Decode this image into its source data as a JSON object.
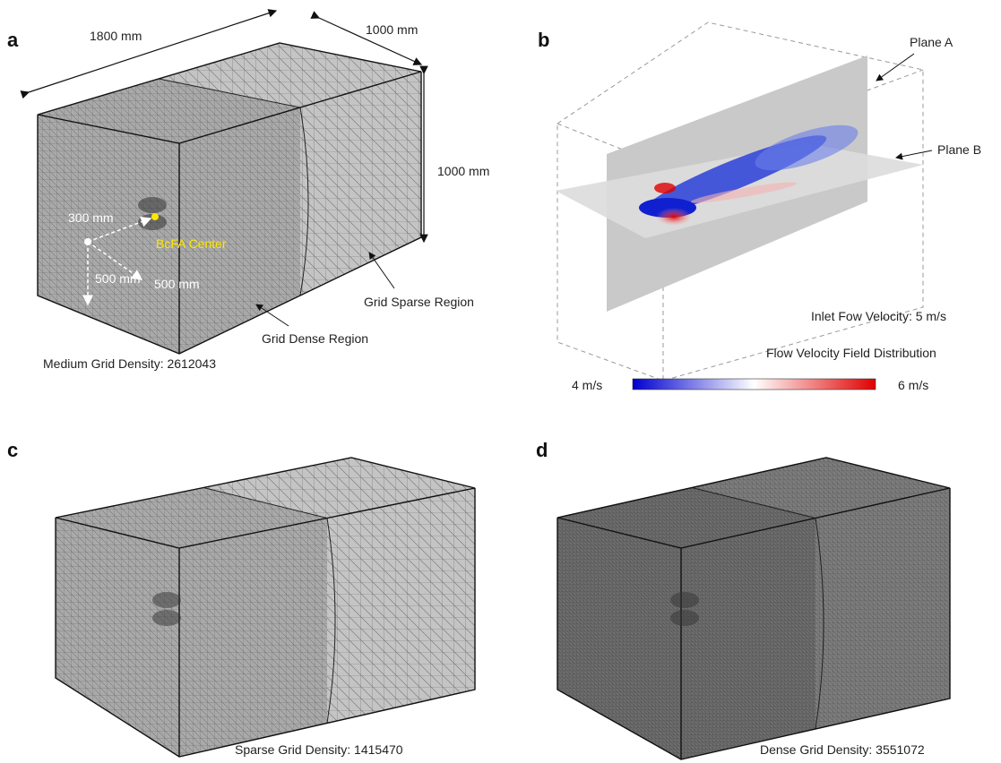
{
  "panel_a": {
    "letter": "a",
    "dim_length": "1800 mm",
    "dim_width": "1000 mm",
    "dim_height": "1000 mm",
    "offset_1": "300 mm",
    "center_label": "BcFA Center",
    "offset_2": "500 mm",
    "offset_3": "500 mm",
    "sparse_region": "Grid Sparse Region",
    "dense_region": "Grid Dense Region",
    "caption": "Medium Grid Density: 2612043"
  },
  "panel_b": {
    "letter": "b",
    "plane_a": "Plane A",
    "plane_b": "Plane B",
    "inlet": "Inlet Fow Velocity: 5 m/s",
    "field_title": "Flow Velocity Field Distribution",
    "scale_min": "4 m/s",
    "scale_max": "6 m/s"
  },
  "panel_c": {
    "letter": "c",
    "caption": "Sparse Grid Density: 1415470"
  },
  "panel_d": {
    "letter": "d",
    "caption": "Dense Grid Density: 3551072"
  }
}
